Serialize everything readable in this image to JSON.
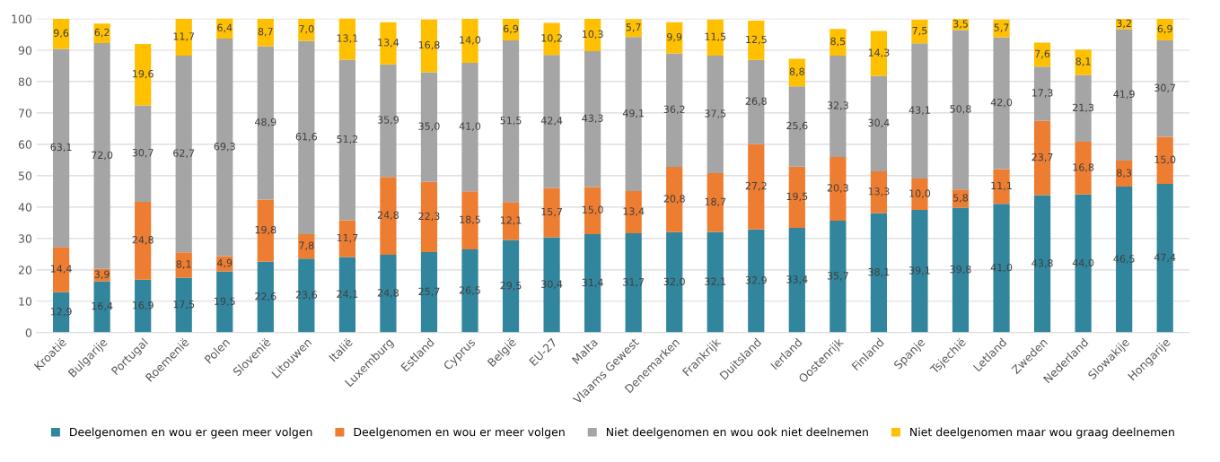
{
  "chart_data": {
    "type": "bar",
    "stacked": true,
    "categories": [
      "Kroatië",
      "Bulgarije",
      "Portugal",
      "Roemenië",
      "Polen",
      "Slovenië",
      "Litouwen",
      "Italië",
      "Luxemburg",
      "Estland",
      "Cyprus",
      "België",
      "EU-27",
      "Malta",
      "Vlaams Gewest",
      "Denemarken",
      "Frankrijk",
      "Duitsland",
      "Ierland",
      "Oostenrijk",
      "Finland",
      "Spanje",
      "Tsjechië",
      "Letland",
      "Zweden",
      "Nederland",
      "Slowakije",
      "Hongarije"
    ],
    "series": [
      {
        "name": "Deelgenomen en wou er geen meer volgen",
        "color": "#31859c",
        "values": [
          12.9,
          16.4,
          16.9,
          17.5,
          19.5,
          22.6,
          23.6,
          24.1,
          24.8,
          25.7,
          26.5,
          29.5,
          30.4,
          31.4,
          31.7,
          32.0,
          32.1,
          32.9,
          33.4,
          35.7,
          38.1,
          39.1,
          39.8,
          41.0,
          43.8,
          44.0,
          46.5,
          47.4
        ],
        "value_labels": [
          "12,9",
          "16,4",
          "16,9",
          "17,5",
          "19,5",
          "22,6",
          "23,6",
          "24,1",
          "24,8",
          "25,7",
          "26,5",
          "29,5",
          "30,4",
          "31,4",
          "31,7",
          "32,0",
          "32,1",
          "32,9",
          "33,4",
          "35,7",
          "38,1",
          "39,1",
          "39,8",
          "41,0",
          "43,8",
          "44,0",
          "46,5",
          "47,4"
        ]
      },
      {
        "name": "Deelgenomen en wou er meer volgen",
        "color": "#ed7d31",
        "values": [
          14.4,
          3.9,
          24.8,
          8.1,
          4.9,
          19.8,
          7.8,
          11.7,
          24.8,
          22.3,
          18.5,
          12.1,
          15.7,
          15.0,
          13.4,
          20.8,
          18.7,
          27.2,
          19.5,
          20.3,
          13.3,
          10.0,
          5.8,
          11.1,
          23.7,
          16.8,
          8.3,
          15.0
        ],
        "value_labels": [
          "14,4",
          "3,9",
          "24,8",
          "8,1",
          "4,9",
          "19,8",
          "7,8",
          "11,7",
          "24,8",
          "22,3",
          "18,5",
          "12,1",
          "15,7",
          "15,0",
          "13,4",
          "20,8",
          "18,7",
          "27,2",
          "19,5",
          "20,3",
          "13,3",
          "10,0",
          "5,8",
          "11,1",
          "23,7",
          "16,8",
          "8,3",
          "15,0"
        ]
      },
      {
        "name": "Niet deelgenomen en wou ook niet deelnemen",
        "color": "#a5a5a5",
        "values": [
          63.1,
          72.0,
          30.7,
          62.7,
          69.3,
          48.9,
          61.6,
          51.2,
          35.9,
          35.0,
          41.0,
          51.5,
          42.4,
          43.3,
          49.1,
          36.2,
          37.5,
          26.8,
          25.6,
          32.3,
          30.4,
          43.1,
          50.8,
          42.0,
          17.3,
          21.3,
          41.9,
          30.7
        ],
        "value_labels": [
          "63,1",
          "72,0",
          "30,7",
          "62,7",
          "69,3",
          "48,9",
          "61,6",
          "51,2",
          "35,9",
          "35,0",
          "41,0",
          "51,5",
          "42,4",
          "43,3",
          "49,1",
          "36,2",
          "37,5",
          "26,8",
          "25,6",
          "32,3",
          "30,4",
          "43,1",
          "50,8",
          "42,0",
          "17,3",
          "21,3",
          "41,9",
          "30,7"
        ]
      },
      {
        "name": "Niet deelgenomen maar wou graag deelnemen",
        "color": "#ffc000",
        "values": [
          9.6,
          6.2,
          19.6,
          11.7,
          6.4,
          8.7,
          7.0,
          13.1,
          13.4,
          16.8,
          14.0,
          6.9,
          10.2,
          10.3,
          5.7,
          9.9,
          11.5,
          12.5,
          8.8,
          8.5,
          14.3,
          7.5,
          3.5,
          5.7,
          7.6,
          8.1,
          3.2,
          6.9
        ],
        "value_labels": [
          "9,6",
          "6,2",
          "19,6",
          "11,7",
          "6,4",
          "8,7",
          "7,0",
          "13,1",
          "13,4",
          "16,8",
          "14,0",
          "6,9",
          "10,2",
          "10,3",
          "5,7",
          "9,9",
          "11,5",
          "12,5",
          "8,8",
          "8,5",
          "14,3",
          "7,5",
          "3,5",
          "5,7",
          "7,6",
          "8,1",
          "3,2",
          "6,9"
        ]
      }
    ],
    "ylim": [
      0,
      100.1
    ],
    "yticks": [
      0,
      10,
      20,
      30,
      40,
      50,
      60,
      70,
      80,
      90,
      100
    ],
    "grid": "y",
    "legend": "bottom"
  }
}
